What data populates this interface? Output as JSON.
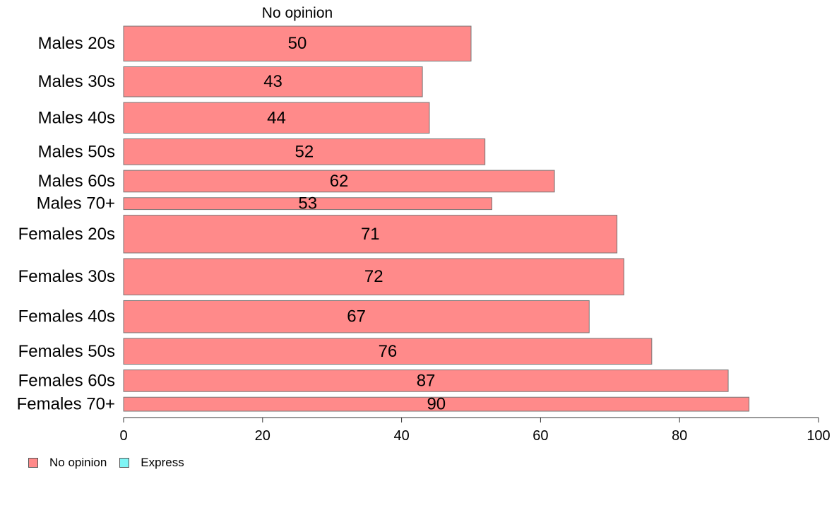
{
  "chart_data": {
    "type": "bar",
    "orientation": "horizontal",
    "title": "No opinion",
    "categories": [
      "Males 20s",
      "Males 30s",
      "Males 40s",
      "Males 50s",
      "Males 60s",
      "Males 70+",
      "Females 20s",
      "Females 30s",
      "Females 40s",
      "Females 50s",
      "Females 60s",
      "Females 70+"
    ],
    "series": [
      {
        "name": "No opinion",
        "color": "#ff8a8a",
        "values": [
          50,
          43,
          44,
          52,
          62,
          53,
          71,
          72,
          67,
          76,
          87,
          90
        ]
      }
    ],
    "bar_width_weights": [
      50,
      43,
      44,
      37,
      31,
      17,
      54,
      52,
      46,
      37,
      31,
      20
    ],
    "xlim": [
      0,
      100
    ],
    "xticks": [
      0,
      20,
      40,
      60,
      80,
      100
    ],
    "xlabel": "",
    "ylabel": "",
    "grid": false,
    "legend_position": "bottom-left",
    "legend": [
      {
        "name": "No opinion",
        "color": "#ff8a8a"
      },
      {
        "name": "Express",
        "color": "#7ff5f5"
      }
    ]
  }
}
